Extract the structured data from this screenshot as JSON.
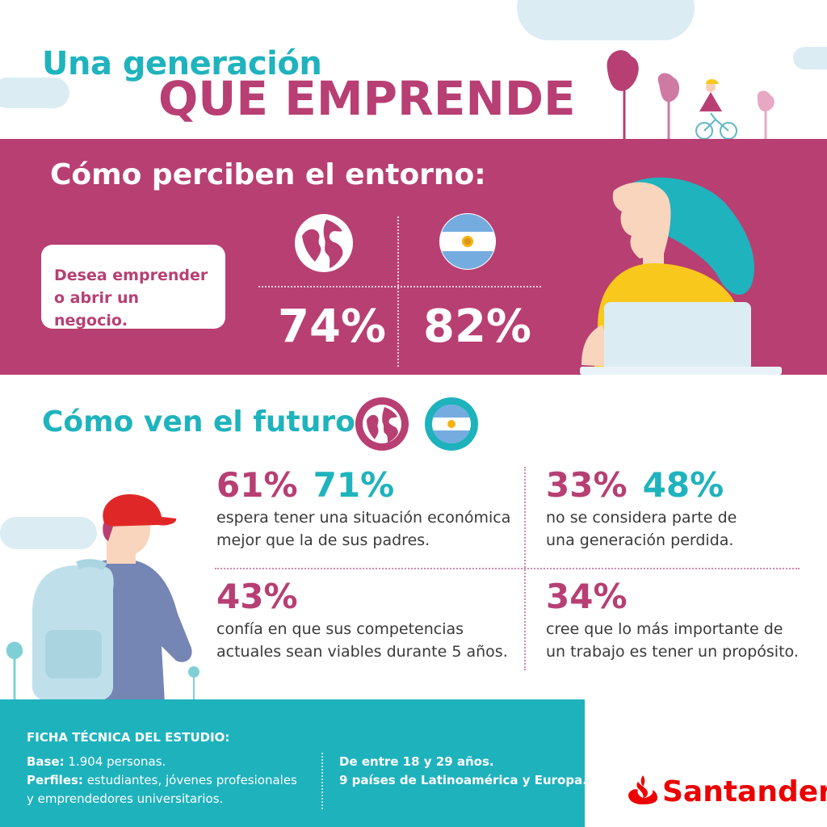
{
  "header": {
    "title_line1": "Una generación",
    "title_line2": "QUE EMPRENDE"
  },
  "entorno": {
    "title": "Cómo perciben el entorno:",
    "card_line1": "Desea emprender",
    "card_line2": "o abrir un negocio.",
    "global_value": "74%",
    "argentina_value": "82%"
  },
  "futuro": {
    "title": "Cómo ven el futuro:",
    "stats": [
      {
        "global": "61%",
        "argentina": "71%",
        "text_line1": "espera tener una situación económica",
        "text_line2": "mejor que la de sus padres."
      },
      {
        "global": "33%",
        "argentina": "48%",
        "text_line1": "no se considera parte de",
        "text_line2": "una generación perdida."
      },
      {
        "global": "43%",
        "text_line1": "confía en que sus competencias",
        "text_line2": "actuales sean viables durante 5 años."
      },
      {
        "global": "34%",
        "text_line1": "cree que lo más importante de",
        "text_line2": "un trabajo es tener un propósito."
      }
    ]
  },
  "ficha": {
    "title": "FICHA TÉCNICA DEL ESTUDIO:",
    "base_label": "Base:",
    "base_value": " 1.904 personas.",
    "perfiles_label": "Perfiles:",
    "perfiles_value": " estudiantes, jóvenes profesionales",
    "perfiles_value2": "y emprendedores universitarios.",
    "edad": "De entre 18 y 29 años.",
    "paises": "9 países de Latinoamérica y Europa."
  },
  "brand": {
    "name": "Santander",
    "color": "#ec0000"
  },
  "colors": {
    "pink": "#b83f72",
    "teal": "#1eb2bd",
    "yellow": "#f8c81c",
    "light_blue": "#dcecf3"
  }
}
